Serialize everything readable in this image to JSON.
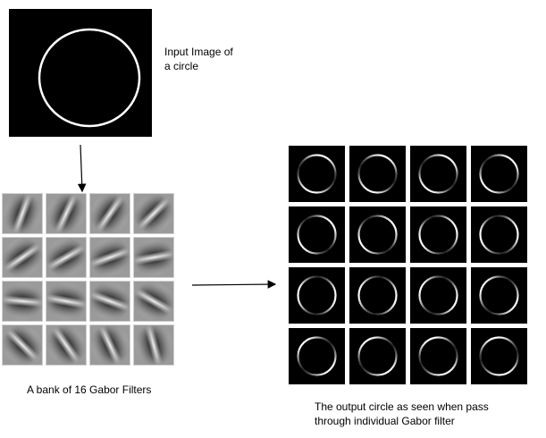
{
  "labels": {
    "input_line1": "Input Image of",
    "input_line2": "a circle",
    "bank": "A bank of 16 Gabor Filters",
    "output_line1": "The output circle as seen when pass",
    "output_line2": "through individual Gabor filter"
  },
  "filters": [
    {
      "angle": 70
    },
    {
      "angle": 65
    },
    {
      "angle": 55
    },
    {
      "angle": 45
    },
    {
      "angle": 35
    },
    {
      "angle": 30
    },
    {
      "angle": 20
    },
    {
      "angle": 10
    },
    {
      "angle": -5
    },
    {
      "angle": -10
    },
    {
      "angle": -20
    },
    {
      "angle": -30
    },
    {
      "angle": -45
    },
    {
      "angle": -55
    },
    {
      "angle": -65
    },
    {
      "angle": -75
    }
  ],
  "outputs": [
    {
      "angle": 70
    },
    {
      "angle": 65
    },
    {
      "angle": 55
    },
    {
      "angle": 45
    },
    {
      "angle": 35
    },
    {
      "angle": 30
    },
    {
      "angle": 20
    },
    {
      "angle": 10
    },
    {
      "angle": -5
    },
    {
      "angle": -10
    },
    {
      "angle": -20
    },
    {
      "angle": -30
    },
    {
      "angle": -45
    },
    {
      "angle": -55
    },
    {
      "angle": -65
    },
    {
      "angle": -75
    }
  ],
  "colors": {
    "background": "#ffffff",
    "image_bg": "#000000",
    "circle": "#ffffff",
    "filter_gray": "#9a9a9a"
  }
}
